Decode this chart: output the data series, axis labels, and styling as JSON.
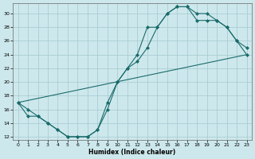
{
  "xlabel": "Humidex (Indice chaleur)",
  "bg_color": "#cde8ec",
  "grid_color": "#a8cdd4",
  "line_color": "#1a6b6b",
  "xlim": [
    -0.5,
    23.5
  ],
  "ylim": [
    11.5,
    31.5
  ],
  "xticks": [
    0,
    1,
    2,
    3,
    4,
    5,
    6,
    7,
    8,
    9,
    10,
    11,
    12,
    13,
    14,
    15,
    16,
    17,
    18,
    19,
    20,
    21,
    22,
    23
  ],
  "yticks": [
    12,
    14,
    16,
    18,
    20,
    22,
    24,
    26,
    28,
    30
  ],
  "line1_x": [
    0,
    1,
    2,
    3,
    4,
    5,
    6,
    7,
    8,
    9,
    10,
    11,
    12,
    13,
    14,
    15,
    16,
    17,
    18,
    19,
    20,
    21,
    22,
    23
  ],
  "line1_y": [
    17,
    16,
    15,
    14,
    13,
    12,
    12,
    12,
    13,
    17,
    20,
    22,
    23,
    25,
    28,
    30,
    31,
    31,
    30,
    30,
    29,
    28,
    26,
    24
  ],
  "line2_x": [
    0,
    1,
    2,
    3,
    4,
    5,
    6,
    7,
    8,
    9,
    10,
    11,
    12,
    13,
    14,
    15,
    16,
    17,
    18,
    19,
    20,
    21,
    22,
    23
  ],
  "line2_y": [
    17,
    15,
    15,
    14,
    13,
    12,
    12,
    12,
    13,
    16,
    20,
    22,
    24,
    28,
    28,
    30,
    31,
    31,
    29,
    29,
    29,
    28,
    26,
    25
  ],
  "line3_x": [
    0,
    23
  ],
  "line3_y": [
    17,
    24
  ]
}
